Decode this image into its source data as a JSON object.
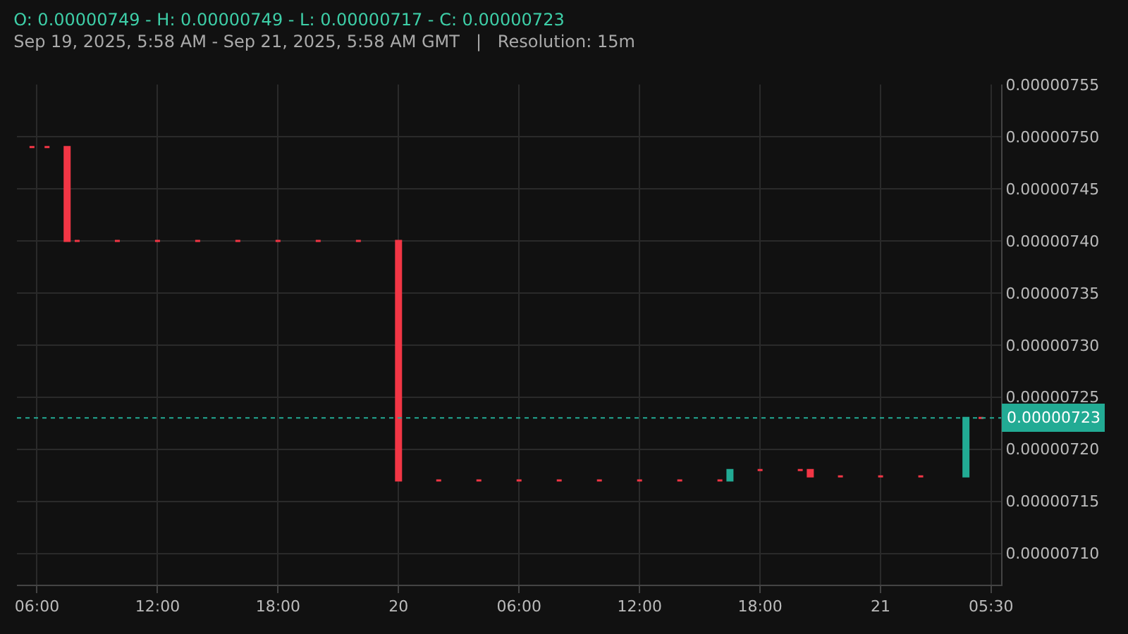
{
  "chart_data": {
    "type": "candlestick",
    "title": "O: 0.00000749 - H: 0.00000749 - L: 0.00000717 - C: 0.00000723",
    "subtitle": "Sep 19, 2025, 5:58 AM - Sep 21, 2025, 5:58 AM GMT   |   Resolution: 15m",
    "x": [
      "2025-09-19T05:45",
      "2025-09-19T06:30",
      "2025-09-19T07:30",
      "2025-09-19T08:00",
      "2025-09-19T10:00",
      "2025-09-19T12:00",
      "2025-09-19T14:00",
      "2025-09-19T16:00",
      "2025-09-19T18:00",
      "2025-09-19T20:00",
      "2025-09-19T22:00",
      "2025-09-20T00:00",
      "2025-09-20T02:00",
      "2025-09-20T04:00",
      "2025-09-20T06:00",
      "2025-09-20T08:00",
      "2025-09-20T10:00",
      "2025-09-20T12:00",
      "2025-09-20T14:00",
      "2025-09-20T16:00",
      "2025-09-20T16:30",
      "2025-09-20T18:00",
      "2025-09-20T20:00",
      "2025-09-20T20:30",
      "2025-09-20T22:00",
      "2025-09-21T00:00",
      "2025-09-21T02:00",
      "2025-09-21T04:15",
      "2025-09-21T05:00"
    ],
    "ohlc": [
      [
        7.49e-06,
        7.49e-06,
        7.49e-06,
        7.49e-06
      ],
      [
        7.49e-06,
        7.49e-06,
        7.49e-06,
        7.49e-06
      ],
      [
        7.49e-06,
        7.49e-06,
        7.4e-06,
        7.4e-06
      ],
      [
        7.4e-06,
        7.4e-06,
        7.4e-06,
        7.4e-06
      ],
      [
        7.4e-06,
        7.4e-06,
        7.4e-06,
        7.4e-06
      ],
      [
        7.4e-06,
        7.4e-06,
        7.4e-06,
        7.4e-06
      ],
      [
        7.4e-06,
        7.4e-06,
        7.4e-06,
        7.4e-06
      ],
      [
        7.4e-06,
        7.4e-06,
        7.4e-06,
        7.4e-06
      ],
      [
        7.4e-06,
        7.4e-06,
        7.4e-06,
        7.4e-06
      ],
      [
        7.4e-06,
        7.4e-06,
        7.4e-06,
        7.4e-06
      ],
      [
        7.4e-06,
        7.4e-06,
        7.4e-06,
        7.4e-06
      ],
      [
        7.4e-06,
        7.4e-06,
        7.17e-06,
        7.17e-06
      ],
      [
        7.17e-06,
        7.17e-06,
        7.17e-06,
        7.17e-06
      ],
      [
        7.17e-06,
        7.17e-06,
        7.17e-06,
        7.17e-06
      ],
      [
        7.17e-06,
        7.17e-06,
        7.17e-06,
        7.17e-06
      ],
      [
        7.17e-06,
        7.17e-06,
        7.17e-06,
        7.17e-06
      ],
      [
        7.17e-06,
        7.17e-06,
        7.17e-06,
        7.17e-06
      ],
      [
        7.17e-06,
        7.17e-06,
        7.17e-06,
        7.17e-06
      ],
      [
        7.17e-06,
        7.17e-06,
        7.17e-06,
        7.17e-06
      ],
      [
        7.17e-06,
        7.17e-06,
        7.17e-06,
        7.17e-06
      ],
      [
        7.17e-06,
        7.18e-06,
        7.17e-06,
        7.18e-06
      ],
      [
        7.18e-06,
        7.18e-06,
        7.18e-06,
        7.18e-06
      ],
      [
        7.18e-06,
        7.18e-06,
        7.18e-06,
        7.18e-06
      ],
      [
        7.18e-06,
        7.18e-06,
        7.174e-06,
        7.174e-06
      ],
      [
        7.174e-06,
        7.174e-06,
        7.174e-06,
        7.174e-06
      ],
      [
        7.174e-06,
        7.174e-06,
        7.174e-06,
        7.174e-06
      ],
      [
        7.174e-06,
        7.174e-06,
        7.174e-06,
        7.174e-06
      ],
      [
        7.174e-06,
        7.23e-06,
        7.174e-06,
        7.23e-06
      ],
      [
        7.23e-06,
        7.23e-06,
        7.23e-06,
        7.23e-06
      ]
    ],
    "colors": [
      "#f23645",
      "#f23645",
      "#f23645",
      "#f23645",
      "#f23645",
      "#f23645",
      "#f23645",
      "#f23645",
      "#f23645",
      "#f23645",
      "#f23645",
      "#f23645",
      "#f23645",
      "#f23645",
      "#f23645",
      "#f23645",
      "#f23645",
      "#f23645",
      "#f23645",
      "#f23645",
      "#22ab94",
      "#f23645",
      "#f23645",
      "#f23645",
      "#f23645",
      "#f23645",
      "#f23645",
      "#22ab94",
      "#f23645"
    ],
    "xlim": [
      "2025-09-19T05:00",
      "2025-09-21T06:00"
    ],
    "xticks": [
      {
        "value": "2025-09-19T06:00",
        "label": "06:00"
      },
      {
        "value": "2025-09-19T12:00",
        "label": "12:00"
      },
      {
        "value": "2025-09-19T18:00",
        "label": "18:00"
      },
      {
        "value": "2025-09-20T00:00",
        "label": "20"
      },
      {
        "value": "2025-09-20T06:00",
        "label": "06:00"
      },
      {
        "value": "2025-09-20T12:00",
        "label": "12:00"
      },
      {
        "value": "2025-09-20T18:00",
        "label": "18:00"
      },
      {
        "value": "2025-09-21T00:00",
        "label": "21"
      },
      {
        "value": "2025-09-21T05:30",
        "label": "05:30"
      }
    ],
    "ylim": [
      7.07e-06,
      7.55e-06
    ],
    "yticks": [
      {
        "value": 7.1e-06,
        "label": "0.00000710"
      },
      {
        "value": 7.15e-06,
        "label": "0.00000715"
      },
      {
        "value": 7.2e-06,
        "label": "0.00000720"
      },
      {
        "value": 7.25e-06,
        "label": "0.00000725"
      },
      {
        "value": 7.3e-06,
        "label": "0.00000730"
      },
      {
        "value": 7.35e-06,
        "label": "0.00000735"
      },
      {
        "value": 7.4e-06,
        "label": "0.00000740"
      },
      {
        "value": 7.45e-06,
        "label": "0.00000745"
      },
      {
        "value": 7.5e-06,
        "label": "0.00000750"
      },
      {
        "value": 7.55e-06,
        "label": "0.00000755"
      }
    ],
    "ref_lines": [
      {
        "axis": "y",
        "value": 7.23e-06,
        "label": "0.00000723",
        "color": "#22ab94",
        "line_style": "dotted"
      }
    ],
    "grid": true
  }
}
